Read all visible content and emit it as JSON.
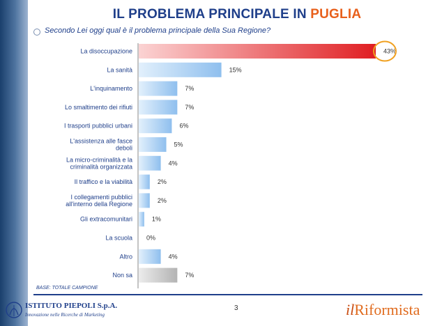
{
  "header": {
    "title_prefix": "IL PROBLEMA PRINCIPALE IN ",
    "title_highlight": "PUGLIA",
    "subtitle": "Secondo Lei oggi qual è il problema principale della Sua Regione?"
  },
  "footer": {
    "base_note": "BASE: TOTALE CAMPIONE",
    "page_number": "3",
    "logo_left_name": "ISTITUTO PIEPOLI S.p.A.",
    "logo_left_tagline": "Innovazione nelle Ricerche di Marketing",
    "logo_right_prefix": "il",
    "logo_right_name": "Riformista"
  },
  "colors": {
    "title": "#1f3f8a",
    "title_highlight": "#e8601c",
    "bar_default": "#9cc8f0",
    "bar_highlight": "#e3262b",
    "bar_other": "#b5b5b5",
    "highlight_ring": "#f0a020"
  },
  "chart_data": {
    "type": "bar",
    "orientation": "horizontal",
    "categories": [
      "La disoccupazione",
      "La sanità",
      "L'inquinamento",
      "Lo smaltimento dei rifiuti",
      "I trasporti pubblici urbani",
      "L'assistenza alle fasce deboli",
      "La micro-criminalità e la criminalità organizzata",
      "Il traffico e la viabilità",
      "I collegamenti pubblici all'interno della Regione",
      "Gli extracomunitari",
      "La scuola",
      "Altro",
      "Non sa"
    ],
    "category_lines": [
      [
        "La disoccupazione"
      ],
      [
        "La sanità"
      ],
      [
        "L'inquinamento"
      ],
      [
        "Lo smaltimento dei rifiuti"
      ],
      [
        "I trasporti pubblici urbani"
      ],
      [
        "L'assistenza alle fasce",
        "deboli"
      ],
      [
        "La micro-criminalità e la",
        "criminalità organizzata"
      ],
      [
        "Il traffico e la viabilità"
      ],
      [
        "I collegamenti pubblici",
        "all'interno della Regione"
      ],
      [
        "Gli extracomunitari"
      ],
      [
        "La scuola"
      ],
      [
        "Altro"
      ],
      [
        "Non sa"
      ]
    ],
    "values": [
      43,
      15,
      7,
      7,
      6,
      5,
      4,
      2,
      2,
      1,
      0,
      4,
      7
    ],
    "value_labels": [
      "43%",
      "15%",
      "7%",
      "7%",
      "6%",
      "5%",
      "4%",
      "2%",
      "2%",
      "1%",
      "0%",
      "4%",
      "7%"
    ],
    "xlim": [
      0,
      43
    ],
    "highlighted_index": 0,
    "grey_index": 12,
    "grid": false
  }
}
